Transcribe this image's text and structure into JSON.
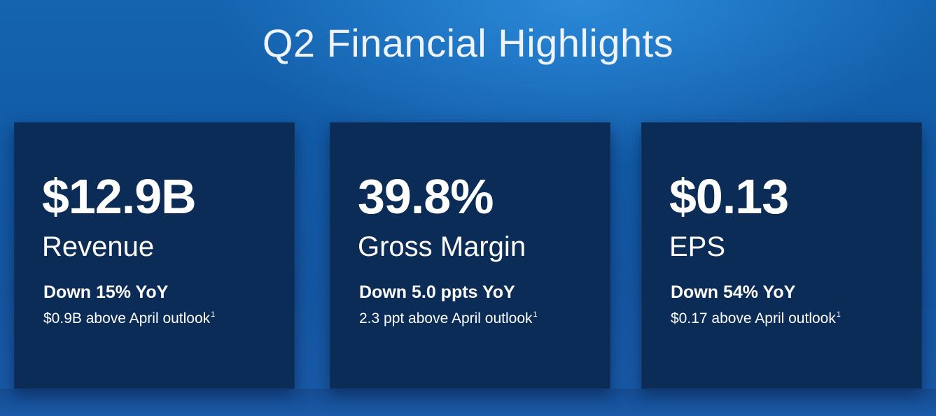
{
  "slide": {
    "title": "Q2 Financial Highlights"
  },
  "cards": [
    {
      "value": "$12.9B",
      "label": "Revenue",
      "change": "Down 15% YoY",
      "note": "$0.9B above April outlook",
      "footnote": "1"
    },
    {
      "value": "39.8%",
      "label": "Gross Margin",
      "change": "Down 5.0 ppts YoY",
      "note": "2.3 ppt above April outlook",
      "footnote": "1"
    },
    {
      "value": "$0.13",
      "label": "EPS",
      "change": "Down 54% YoY",
      "note": "$0.17 above April outlook",
      "footnote": "1"
    }
  ],
  "colors": {
    "background": "#125aa6",
    "card": "#0a2c56",
    "text": "#ffffff"
  }
}
